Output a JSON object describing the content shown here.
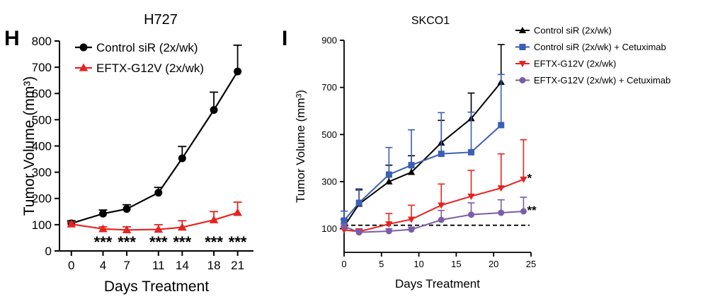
{
  "panel_letters": [
    "H",
    "I"
  ],
  "chart_data": [
    {
      "type": "line",
      "title": "H727",
      "xlabel": "Days Treatment",
      "ylabel": "Tumor Volume (mm³)",
      "xlim": [
        -1.5,
        23
      ],
      "ylim": [
        0,
        800
      ],
      "xticks": [
        0,
        4,
        7,
        11,
        14,
        18,
        21
      ],
      "yticks": [
        0,
        100,
        200,
        300,
        400,
        500,
        600,
        700,
        800
      ],
      "legend_position": "top-left",
      "series": [
        {
          "name": "Control siR (2x/wk)",
          "color": "#000000",
          "marker": "circle",
          "x": [
            0,
            4,
            7,
            11,
            14,
            18,
            21
          ],
          "y": [
            105,
            142,
            160,
            222,
            353,
            537,
            684
          ],
          "err": [
            10,
            14,
            16,
            20,
            45,
            68,
            100
          ]
        },
        {
          "name": "EFTX-G12V (2x/wk)",
          "color": "#e52421",
          "marker": "triangle-up",
          "x": [
            0,
            4,
            7,
            11,
            14,
            18,
            21
          ],
          "y": [
            102,
            84,
            80,
            82,
            90,
            118,
            146
          ],
          "err": [
            8,
            8,
            12,
            18,
            25,
            32,
            40
          ]
        }
      ],
      "annotations": [
        {
          "x": 4,
          "text": "***"
        },
        {
          "x": 7,
          "text": "***"
        },
        {
          "x": 11,
          "text": "***"
        },
        {
          "x": 14,
          "text": "***"
        },
        {
          "x": 18,
          "text": "***"
        },
        {
          "x": 21,
          "text": "***"
        }
      ]
    },
    {
      "type": "line",
      "title": "SKCO1",
      "xlabel": "Days Treatment",
      "ylabel": "Tumor Volume (mm³)",
      "xlim": [
        0,
        25
      ],
      "ylim": [
        0,
        900
      ],
      "xticks": [
        0,
        5,
        10,
        15,
        20,
        25
      ],
      "yticks": [
        100,
        300,
        500,
        700,
        900
      ],
      "legend_position": "top-right",
      "reference_line_y": 115,
      "series": [
        {
          "name": "Control siR (2x/wk)",
          "color": "#000000",
          "marker": "triangle-up",
          "x": [
            0,
            2,
            6,
            9,
            13,
            17,
            21
          ],
          "y": [
            110,
            205,
            300,
            340,
            465,
            568,
            722
          ],
          "err": [
            30,
            60,
            70,
            70,
            95,
            108,
            160
          ]
        },
        {
          "name": "Control siR (2x/wk) + Cetuximab",
          "color": "#3a5fb3",
          "marker": "square",
          "x": [
            0,
            2,
            6,
            9,
            13,
            17,
            21
          ],
          "y": [
            135,
            210,
            330,
            370,
            418,
            425,
            540
          ],
          "err": [
            40,
            60,
            115,
            150,
            175,
            170,
            215
          ]
        },
        {
          "name": "EFTX-G12V (2x/wk)",
          "color": "#e52421",
          "marker": "triangle-down",
          "x": [
            0,
            2,
            6,
            9,
            13,
            17,
            21,
            24
          ],
          "y": [
            95,
            88,
            120,
            140,
            200,
            238,
            273,
            310
          ],
          "err": [
            15,
            12,
            45,
            60,
            90,
            110,
            145,
            168
          ]
        },
        {
          "name": "EFTX-G12V (2x/wk) + Cetuximab",
          "color": "#7a5ca8",
          "marker": "circle",
          "x": [
            0,
            2,
            6,
            9,
            13,
            17,
            21,
            24
          ],
          "y": [
            110,
            85,
            90,
            97,
            138,
            160,
            168,
            174
          ],
          "err": [
            10,
            10,
            10,
            10,
            40,
            50,
            55,
            60
          ]
        }
      ],
      "annotations": [
        {
          "series": 2,
          "text": "*"
        },
        {
          "series": 3,
          "text": "**"
        }
      ]
    }
  ]
}
